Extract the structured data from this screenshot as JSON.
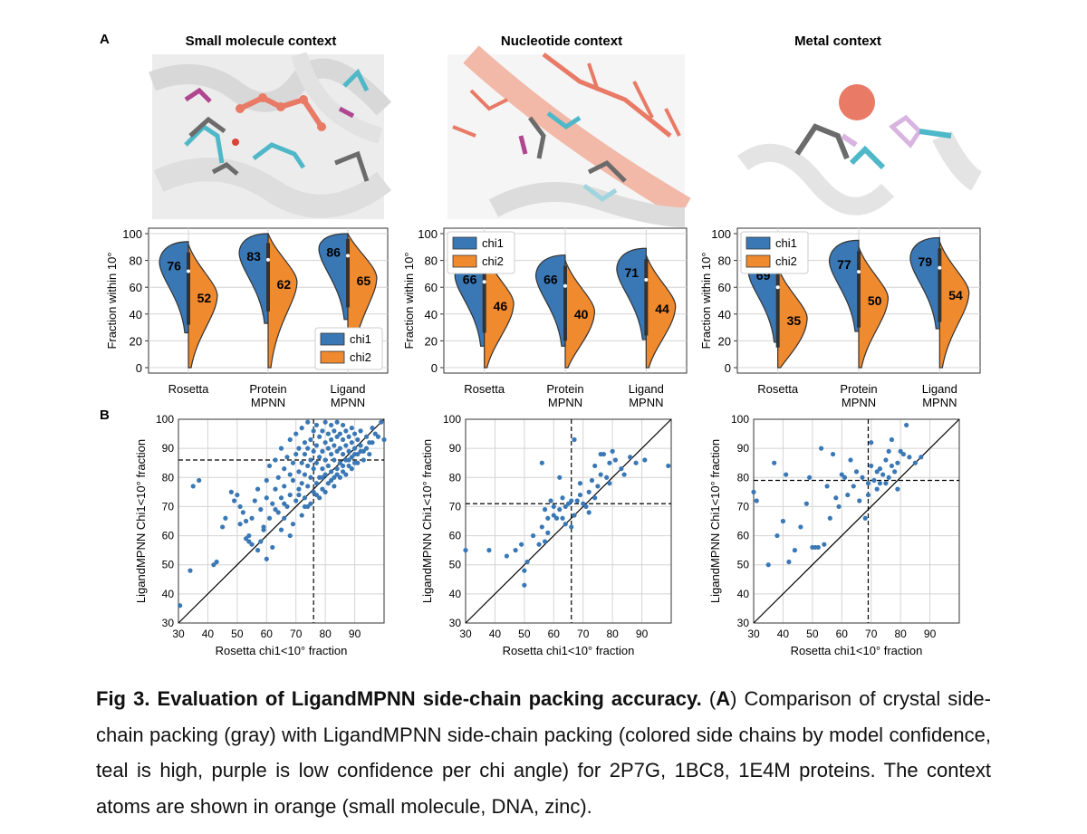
{
  "panel_a_label": "A",
  "panel_b_label": "B",
  "contexts": [
    {
      "title": "Small molecule context"
    },
    {
      "title": "Nucleotide context"
    },
    {
      "title": "Metal context"
    }
  ],
  "colors": {
    "chi1": "#3a78b5",
    "chi2": "#f08a2e",
    "scatter_point": "#3a78b5",
    "ligand": "#e87a66",
    "teal": "#4fb8c8",
    "purple": "#b0468f",
    "gray_crystal": "#6b6b6b"
  },
  "chart_data": [
    {
      "type": "violin",
      "title": "",
      "ylabel": "Fraction within 10°",
      "ylim": [
        0,
        100
      ],
      "yticks": [
        "0",
        "20",
        "40",
        "60",
        "80",
        "100"
      ],
      "categories": [
        "Rosetta",
        "Protein\nMPNN",
        "Ligand\nMPNN"
      ],
      "category_lines": [
        [
          "Rosetta"
        ],
        [
          "Protein",
          "MPNN"
        ],
        [
          "Ligand",
          "MPNN"
        ]
      ],
      "series": [
        {
          "name": "chi1",
          "median_labels": [
            "76",
            "83",
            "86"
          ],
          "values": [
            76,
            83,
            86
          ]
        },
        {
          "name": "chi2",
          "median_labels": [
            "52",
            "62",
            "65"
          ],
          "values": [
            52,
            62,
            65
          ]
        }
      ],
      "legend": "bottom-right",
      "grid": true
    },
    {
      "type": "violin",
      "title": "",
      "ylabel": "Fraction within 10°",
      "ylim": [
        0,
        100
      ],
      "yticks": [
        "0",
        "20",
        "40",
        "60",
        "80",
        "100"
      ],
      "categories": [
        "Rosetta",
        "Protein\nMPNN",
        "Ligand\nMPNN"
      ],
      "category_lines": [
        [
          "Rosetta"
        ],
        [
          "Protein",
          "MPNN"
        ],
        [
          "Ligand",
          "MPNN"
        ]
      ],
      "series": [
        {
          "name": "chi1",
          "median_labels": [
            "66",
            "66",
            "71"
          ],
          "values": [
            66,
            66,
            71
          ]
        },
        {
          "name": "chi2",
          "median_labels": [
            "46",
            "40",
            "44"
          ],
          "values": [
            46,
            40,
            44
          ]
        }
      ],
      "legend": "top-left",
      "grid": true
    },
    {
      "type": "violin",
      "title": "",
      "ylabel": "Fraction within 10°",
      "ylim": [
        0,
        100
      ],
      "yticks": [
        "0",
        "20",
        "40",
        "60",
        "80",
        "100"
      ],
      "categories": [
        "Rosetta",
        "Protein\nMPNN",
        "Ligand\nMPNN"
      ],
      "category_lines": [
        [
          "Rosetta"
        ],
        [
          "Protein",
          "MPNN"
        ],
        [
          "Ligand",
          "MPNN"
        ]
      ],
      "series": [
        {
          "name": "chi1",
          "median_labels": [
            "69",
            "77",
            "79"
          ],
          "values": [
            69,
            77,
            79
          ]
        },
        {
          "name": "chi2",
          "median_labels": [
            "35",
            "50",
            "54"
          ],
          "values": [
            35,
            50,
            54
          ]
        }
      ],
      "legend": "top-left",
      "grid": true
    },
    {
      "type": "scatter",
      "xlabel": "Rosetta chi1<10° fraction",
      "ylabel": "LigandMPNN Chi1<10° fraction",
      "xlim": [
        30,
        100
      ],
      "ylim": [
        30,
        100
      ],
      "xticks": [
        "30",
        "40",
        "50",
        "60",
        "70",
        "80",
        "90"
      ],
      "yticks": [
        "30",
        "40",
        "50",
        "60",
        "70",
        "80",
        "90",
        "100"
      ],
      "diagonal": true,
      "ref_lines": {
        "x": 76,
        "y": 86
      },
      "grid": true,
      "points": [
        [
          30.5,
          36
        ],
        [
          34,
          48
        ],
        [
          35,
          77
        ],
        [
          37,
          79
        ],
        [
          42,
          50
        ],
        [
          43,
          51
        ],
        [
          45,
          63
        ],
        [
          46,
          66
        ],
        [
          48,
          75
        ],
        [
          49,
          72
        ],
        [
          50,
          74
        ],
        [
          51,
          70
        ],
        [
          52,
          68
        ],
        [
          53,
          65
        ],
        [
          54,
          58
        ],
        [
          54,
          60
        ],
        [
          55,
          66
        ],
        [
          56,
          72
        ],
        [
          57,
          76
        ],
        [
          58,
          69
        ],
        [
          59,
          62
        ],
        [
          60,
          73
        ],
        [
          60,
          79
        ],
        [
          61,
          66
        ],
        [
          61,
          84
        ],
        [
          62,
          71
        ],
        [
          63,
          76
        ],
        [
          63,
          86
        ],
        [
          64,
          68
        ],
        [
          64,
          80
        ],
        [
          65,
          73
        ],
        [
          65,
          90
        ],
        [
          66,
          77
        ],
        [
          66,
          83
        ],
        [
          67,
          70
        ],
        [
          67,
          87
        ],
        [
          68,
          74
        ],
        [
          68,
          81
        ],
        [
          68,
          93
        ],
        [
          69,
          79
        ],
        [
          69,
          85
        ],
        [
          70,
          72
        ],
        [
          70,
          88
        ],
        [
          70,
          95
        ],
        [
          71,
          76
        ],
        [
          71,
          82
        ],
        [
          71,
          90
        ],
        [
          72,
          78
        ],
        [
          72,
          85
        ],
        [
          72,
          97
        ],
        [
          73,
          73
        ],
        [
          73,
          81
        ],
        [
          73,
          88
        ],
        [
          73,
          92
        ],
        [
          74,
          77
        ],
        [
          74,
          84
        ],
        [
          74,
          90
        ],
        [
          74,
          99
        ],
        [
          75,
          80
        ],
        [
          75,
          86
        ],
        [
          75,
          93
        ],
        [
          76,
          75
        ],
        [
          76,
          83
        ],
        [
          76,
          89
        ],
        [
          76,
          96
        ],
        [
          77,
          78
        ],
        [
          77,
          85
        ],
        [
          77,
          91
        ],
        [
          77,
          98
        ],
        [
          78,
          80
        ],
        [
          78,
          87
        ],
        [
          78,
          94
        ],
        [
          79,
          76
        ],
        [
          79,
          83
        ],
        [
          79,
          89
        ],
        [
          79,
          96
        ],
        [
          80,
          81
        ],
        [
          80,
          86
        ],
        [
          80,
          92
        ],
        [
          80,
          99
        ],
        [
          81,
          78
        ],
        [
          81,
          84
        ],
        [
          81,
          90
        ],
        [
          81,
          95
        ],
        [
          82,
          82
        ],
        [
          82,
          88
        ],
        [
          82,
          93
        ],
        [
          82,
          98
        ],
        [
          83,
          80
        ],
        [
          83,
          86
        ],
        [
          83,
          91
        ],
        [
          83,
          96
        ],
        [
          84,
          83
        ],
        [
          84,
          89
        ],
        [
          84,
          94
        ],
        [
          84,
          99
        ],
        [
          85,
          85
        ],
        [
          85,
          90
        ],
        [
          85,
          95
        ],
        [
          86,
          82
        ],
        [
          86,
          88
        ],
        [
          86,
          93
        ],
        [
          86,
          98
        ],
        [
          87,
          86
        ],
        [
          87,
          91
        ],
        [
          87,
          96
        ],
        [
          88,
          84
        ],
        [
          88,
          89
        ],
        [
          88,
          94
        ],
        [
          89,
          87
        ],
        [
          89,
          92
        ],
        [
          89,
          97
        ],
        [
          90,
          85
        ],
        [
          90,
          90
        ],
        [
          90,
          95
        ],
        [
          91,
          88
        ],
        [
          91,
          93
        ],
        [
          92,
          91
        ],
        [
          92,
          96
        ],
        [
          93,
          89
        ],
        [
          94,
          94
        ],
        [
          95,
          92
        ],
        [
          96,
          97
        ],
        [
          97,
          95
        ],
        [
          99,
          99
        ],
        [
          100,
          93
        ],
        [
          62,
          56
        ],
        [
          58,
          58
        ],
        [
          66,
          66
        ],
        [
          69,
          64
        ],
        [
          72,
          67
        ],
        [
          75,
          71
        ],
        [
          78,
          73
        ],
        [
          80,
          75
        ],
        [
          83,
          77
        ],
        [
          85,
          80
        ],
        [
          87,
          81
        ],
        [
          89,
          83
        ],
        [
          91,
          85
        ],
        [
          93,
          86
        ],
        [
          95,
          88
        ],
        [
          68,
          60
        ],
        [
          73,
          70
        ],
        [
          77,
          74
        ],
        [
          65,
          62
        ],
        [
          60,
          52
        ],
        [
          57,
          55
        ],
        [
          55,
          57
        ],
        [
          53,
          59
        ],
        [
          51,
          64
        ],
        [
          59,
          63
        ],
        [
          63,
          69
        ],
        [
          66,
          71
        ],
        [
          71,
          74
        ],
        [
          74,
          70
        ],
        [
          79,
          80
        ],
        [
          82,
          79
        ],
        [
          84,
          81
        ],
        [
          86,
          84
        ],
        [
          88,
          86
        ],
        [
          90,
          88
        ],
        [
          92,
          89
        ],
        [
          94,
          90
        ],
        [
          96,
          92
        ],
        [
          98,
          94
        ]
      ]
    },
    {
      "type": "scatter",
      "xlabel": "Rosetta chi1<10° fraction",
      "ylabel": "LigandMPNN Chi1<10° fraction",
      "xlim": [
        30,
        100
      ],
      "ylim": [
        30,
        100
      ],
      "xticks": [
        "30",
        "40",
        "50",
        "60",
        "70",
        "80",
        "90"
      ],
      "yticks": [
        "30",
        "40",
        "50",
        "60",
        "70",
        "80",
        "90",
        "100"
      ],
      "diagonal": true,
      "ref_lines": {
        "x": 66,
        "y": 71
      },
      "grid": true,
      "points": [
        [
          30,
          55
        ],
        [
          38,
          55
        ],
        [
          44,
          53
        ],
        [
          47,
          55
        ],
        [
          49,
          57
        ],
        [
          50,
          48
        ],
        [
          50,
          43
        ],
        [
          51,
          51
        ],
        [
          53,
          60
        ],
        [
          55,
          57
        ],
        [
          56,
          63
        ],
        [
          57,
          69
        ],
        [
          57,
          58
        ],
        [
          58,
          66
        ],
        [
          58,
          61
        ],
        [
          59,
          72
        ],
        [
          60,
          67
        ],
        [
          61,
          66
        ],
        [
          62,
          69
        ],
        [
          63,
          73
        ],
        [
          64,
          70
        ],
        [
          64,
          64
        ],
        [
          65,
          71
        ],
        [
          66,
          63
        ],
        [
          67,
          67
        ],
        [
          67,
          93
        ],
        [
          68,
          72
        ],
        [
          69,
          74
        ],
        [
          70,
          71
        ],
        [
          71,
          70
        ],
        [
          72,
          75
        ],
        [
          73,
          79
        ],
        [
          74,
          73
        ],
        [
          74,
          84
        ],
        [
          75,
          77
        ],
        [
          76,
          81
        ],
        [
          77,
          88
        ],
        [
          78,
          80
        ],
        [
          79,
          85
        ],
        [
          80,
          89
        ],
        [
          81,
          86
        ],
        [
          83,
          83
        ],
        [
          84,
          81
        ],
        [
          86,
          87
        ],
        [
          88,
          85
        ],
        [
          91,
          86
        ],
        [
          99,
          84
        ],
        [
          66,
          72
        ],
        [
          60,
          70
        ],
        [
          69,
          78
        ],
        [
          72,
          68
        ],
        [
          63,
          66
        ],
        [
          79,
          78
        ],
        [
          56,
          85
        ],
        [
          62,
          80
        ],
        [
          76,
          88
        ]
      ]
    },
    {
      "type": "scatter",
      "xlabel": "Rosetta chi1<10° fraction",
      "ylabel": "LigandMPNN Chi1<10° fraction",
      "xlim": [
        30,
        100
      ],
      "ylim": [
        30,
        100
      ],
      "xticks": [
        "30",
        "40",
        "50",
        "60",
        "70",
        "80",
        "90"
      ],
      "yticks": [
        "30",
        "40",
        "50",
        "60",
        "70",
        "80",
        "90",
        "100"
      ],
      "diagonal": true,
      "ref_lines": {
        "x": 69,
        "y": 79
      },
      "grid": true,
      "points": [
        [
          30,
          75
        ],
        [
          31,
          72
        ],
        [
          35,
          50
        ],
        [
          37,
          85
        ],
        [
          38,
          60
        ],
        [
          40,
          65
        ],
        [
          41,
          81
        ],
        [
          42,
          51
        ],
        [
          44,
          55
        ],
        [
          46,
          63
        ],
        [
          48,
          71
        ],
        [
          49,
          80
        ],
        [
          50,
          56
        ],
        [
          51,
          56
        ],
        [
          52,
          56
        ],
        [
          53,
          90
        ],
        [
          54,
          57
        ],
        [
          55,
          77
        ],
        [
          56,
          66
        ],
        [
          57,
          88
        ],
        [
          58,
          73
        ],
        [
          59,
          70
        ],
        [
          60,
          81
        ],
        [
          61,
          80
        ],
        [
          62,
          74
        ],
        [
          63,
          86
        ],
        [
          64,
          77
        ],
        [
          65,
          82
        ],
        [
          66,
          72
        ],
        [
          67,
          80
        ],
        [
          68,
          66
        ],
        [
          69,
          78
        ],
        [
          70,
          84
        ],
        [
          70,
          92
        ],
        [
          71,
          79
        ],
        [
          72,
          82
        ],
        [
          72,
          76
        ],
        [
          73,
          83
        ],
        [
          74,
          81
        ],
        [
          75,
          86
        ],
        [
          76,
          80
        ],
        [
          76,
          89
        ],
        [
          77,
          84
        ],
        [
          77,
          93
        ],
        [
          78,
          82
        ],
        [
          79,
          76
        ],
        [
          79,
          85
        ],
        [
          80,
          89
        ],
        [
          81,
          88
        ],
        [
          82,
          98
        ],
        [
          83,
          87
        ],
        [
          85,
          85
        ],
        [
          87,
          87
        ],
        [
          69,
          74
        ],
        [
          73,
          78
        ],
        [
          75,
          78
        ]
      ]
    }
  ],
  "caption": {
    "fig_label": "Fig 3. Evaluation of LigandMPNN side-chain packing accuracy.",
    "text_1": " (",
    "panel_a": "A",
    "text_2": ") Comparison of crystal side-chain packing (gray) with LigandMPNN side-chain packing (colored side chains by model confidence, teal is high, purple is low confidence per chi angle) for 2P7G, 1BC8, 1E4M proteins. The context atoms are shown in orange (small molecule, DNA, zinc)."
  }
}
